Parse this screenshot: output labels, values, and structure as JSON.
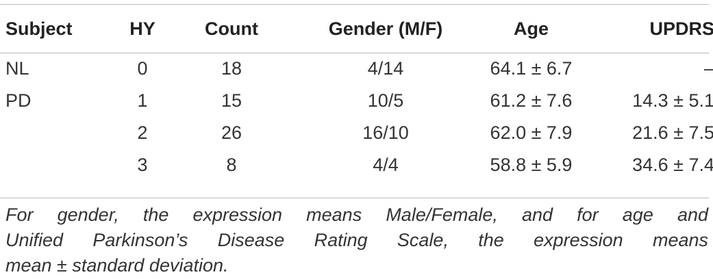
{
  "table": {
    "headers": [
      "Subject",
      "HY",
      "Count",
      "Gender (M/F)",
      "Age",
      "UPDRS"
    ],
    "rows": [
      [
        "NL",
        "0",
        "18",
        "4/14",
        "64.1 ± 6.7",
        "–"
      ],
      [
        "PD",
        "1",
        "15",
        "10/5",
        "61.2 ± 7.6",
        "14.3 ± 5.1"
      ],
      [
        "",
        "2",
        "26",
        "16/10",
        "62.0 ± 7.9",
        "21.6 ± 7.5"
      ],
      [
        "",
        "3",
        "8",
        "4/4",
        "58.8 ± 5.9",
        "34.6 ± 7.4"
      ]
    ]
  },
  "footnote": {
    "lines": [
      "For gender, the expression means Male/Female, and for age and",
      "Unified Parkinson’s Disease Rating Scale, the expression means",
      "mean ± standard deviation."
    ]
  }
}
